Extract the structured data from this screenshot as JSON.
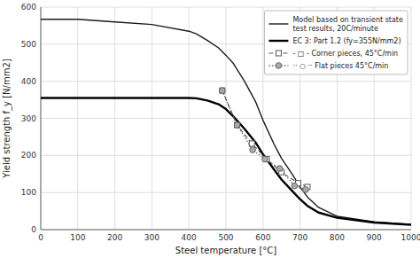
{
  "chart_data": {
    "type": "line",
    "xlabel": "Steel temperature [°C]",
    "ylabel": "Yield strength f_y [N/mm2]",
    "xlim": [
      0,
      1000
    ],
    "ylim": [
      0,
      600
    ],
    "xticks": [
      0,
      100,
      200,
      300,
      400,
      500,
      600,
      700,
      800,
      900,
      1000
    ],
    "yticks": [
      0,
      100,
      200,
      300,
      400,
      500,
      600
    ],
    "grid": true,
    "legend": "upper right",
    "series": [
      {
        "name": "Model based on transient state\ntest results, 20C/minute",
        "color": "#1a1a1a",
        "line_style": "solid",
        "x": [
          0,
          20,
          100,
          200,
          300,
          400,
          420,
          450,
          480,
          500,
          520,
          550,
          580,
          600,
          630,
          650,
          680,
          700,
          720,
          750,
          800,
          900,
          1000
        ],
        "values": [
          567,
          567,
          567,
          560,
          553,
          535,
          528,
          510,
          490,
          470,
          448,
          400,
          345,
          295,
          230,
          192,
          148,
          115,
          88,
          60,
          36,
          21,
          14
        ]
      },
      {
        "name": "EC 3: Part 1.2 (fy=355N/mm2)",
        "color": "#000000",
        "line_style": "solid",
        "x": [
          0,
          20,
          100,
          200,
          300,
          357,
          400,
          420,
          450,
          480,
          500,
          520,
          550,
          580,
          600,
          630,
          650,
          680,
          700,
          720,
          750,
          800,
          900,
          1000
        ],
        "values": [
          355,
          355,
          355,
          355,
          355,
          355,
          355,
          354,
          348,
          338,
          325,
          305,
          272,
          235,
          203,
          162,
          135,
          103,
          82,
          64,
          46,
          32,
          19,
          13
        ]
      },
      {
        "name": "- □ - Corner pieces, 45°C/min",
        "color": "#555555",
        "line_style": "dashed",
        "marker": "square",
        "x": [
          490,
          530,
          570,
          610,
          650,
          695,
          720
        ],
        "values": [
          375,
          282,
          232,
          190,
          155,
          125,
          115
        ]
      },
      {
        "name": "·· ○ ·· Flat pieces 45°C/min",
        "color": "#666666",
        "line_style": "dotted",
        "marker": "circle",
        "x": [
          490,
          530,
          572,
          605,
          645,
          685,
          715
        ],
        "values": [
          375,
          282,
          215,
          190,
          165,
          118,
          108
        ]
      }
    ]
  }
}
